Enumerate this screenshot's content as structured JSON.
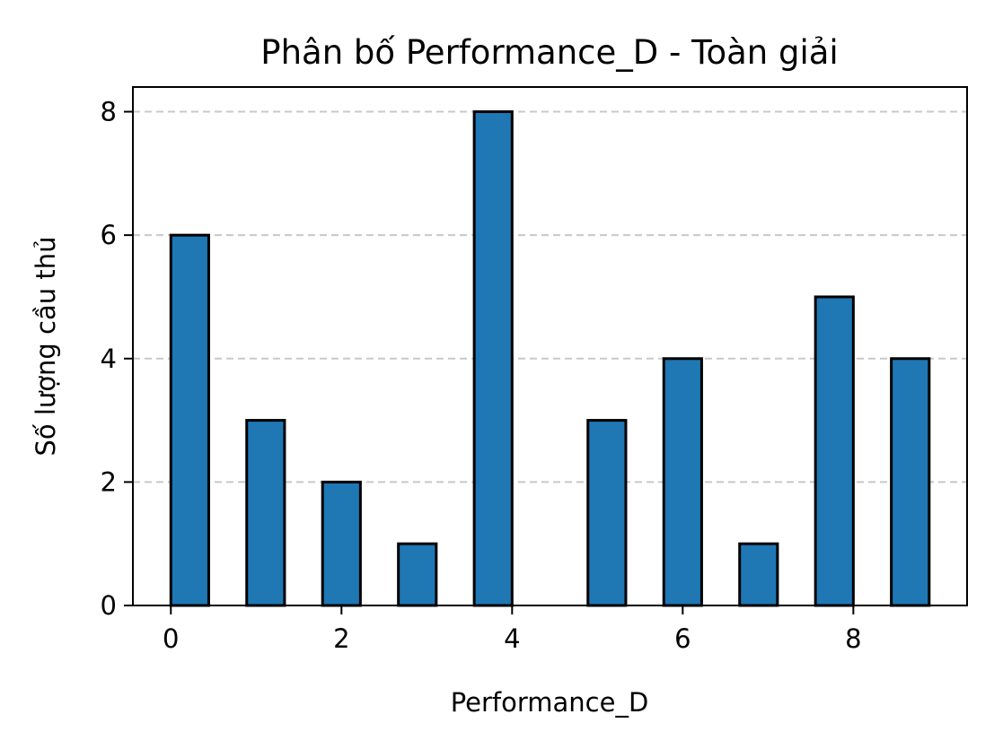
{
  "chart_data": {
    "type": "bar",
    "title": "Phân bố Performance_D - Toàn giải",
    "xlabel": "Performance_D",
    "ylabel": "Số lượng cầu thủ",
    "bars": [
      {
        "x": 0.222,
        "value": 6
      },
      {
        "x": 1.111,
        "value": 3
      },
      {
        "x": 2.0,
        "value": 2
      },
      {
        "x": 2.889,
        "value": 1
      },
      {
        "x": 3.778,
        "value": 8
      },
      {
        "x": 5.111,
        "value": 3
      },
      {
        "x": 6.0,
        "value": 4
      },
      {
        "x": 6.889,
        "value": 1
      },
      {
        "x": 7.778,
        "value": 5
      },
      {
        "x": 8.667,
        "value": 4
      }
    ],
    "bar_width": 0.444,
    "xlim": [
      -0.445,
      9.333
    ],
    "ylim": [
      0,
      8.4
    ],
    "xticks": [
      0,
      2,
      4,
      6,
      8
    ],
    "yticks": [
      0,
      2,
      4,
      6,
      8
    ],
    "grid": "y-dashed",
    "bar_color": "#1f77b4",
    "edge_color": "#000000"
  }
}
